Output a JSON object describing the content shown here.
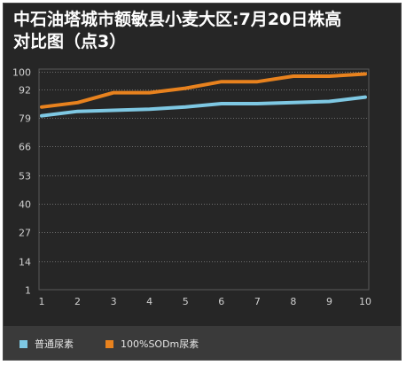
{
  "title_line1": "中石油塔城市额敏县小麦大区:7月20日株高",
  "title_line2": "对比图（点3）",
  "chart_data": {
    "type": "line",
    "title": "中石油塔城市额敏县小麦大区:7月20日株高对比图（点3）",
    "xlabel": "",
    "ylabel": "",
    "categories": [
      "1",
      "2",
      "3",
      "4",
      "5",
      "6",
      "7",
      "8",
      "9",
      "10"
    ],
    "y_ticks": [
      1,
      14,
      27,
      40,
      53,
      66,
      79,
      92,
      100
    ],
    "ylim": [
      1,
      100
    ],
    "grid": true,
    "legend_position": "bottom",
    "series": [
      {
        "name": "普通尿素",
        "color": "#7ec8e3",
        "values": [
          80,
          82,
          82.5,
          83,
          84,
          85.5,
          85.5,
          86,
          86.5,
          88.5
        ]
      },
      {
        "name": "100%SODm尿素",
        "color": "#e8821e",
        "values": [
          84,
          86,
          90.5,
          90.5,
          92.5,
          95.5,
          95.5,
          98,
          98,
          99
        ]
      }
    ]
  }
}
